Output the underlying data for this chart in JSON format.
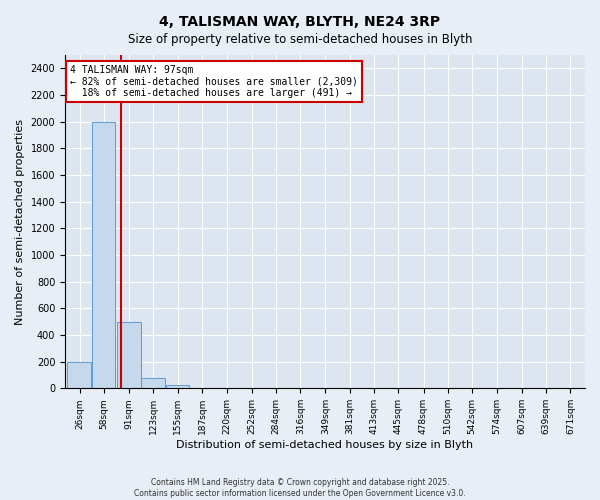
{
  "title": "4, TALISMAN WAY, BLYTH, NE24 3RP",
  "subtitle": "Size of property relative to semi-detached houses in Blyth",
  "xlabel": "Distribution of semi-detached houses by size in Blyth",
  "ylabel": "Number of semi-detached properties",
  "bar_color": "#c5d8ec",
  "bar_edge_color": "#5b9bd5",
  "background_color": "#dde6f0",
  "fig_background_color": "#e8eef5",
  "property_size": 97,
  "pct_smaller": 82,
  "count_smaller": 2309,
  "pct_larger": 18,
  "count_larger": 491,
  "annotation_box_color": "#ffffff",
  "annotation_box_edge": "#cc0000",
  "vline_color": "#cc0000",
  "bins": [
    26,
    58,
    91,
    123,
    155,
    187,
    220,
    252,
    284,
    316,
    349,
    381,
    413,
    445,
    478,
    510,
    542,
    574,
    607,
    639,
    671
  ],
  "counts": [
    195,
    2000,
    500,
    80,
    25,
    0,
    0,
    0,
    0,
    0,
    0,
    0,
    0,
    0,
    0,
    0,
    0,
    0,
    0,
    0
  ],
  "ylim": [
    0,
    2500
  ],
  "yticks": [
    0,
    200,
    400,
    600,
    800,
    1000,
    1200,
    1400,
    1600,
    1800,
    2000,
    2200,
    2400
  ],
  "footer_line1": "Contains HM Land Registry data © Crown copyright and database right 2025.",
  "footer_line2": "Contains public sector information licensed under the Open Government Licence v3.0."
}
